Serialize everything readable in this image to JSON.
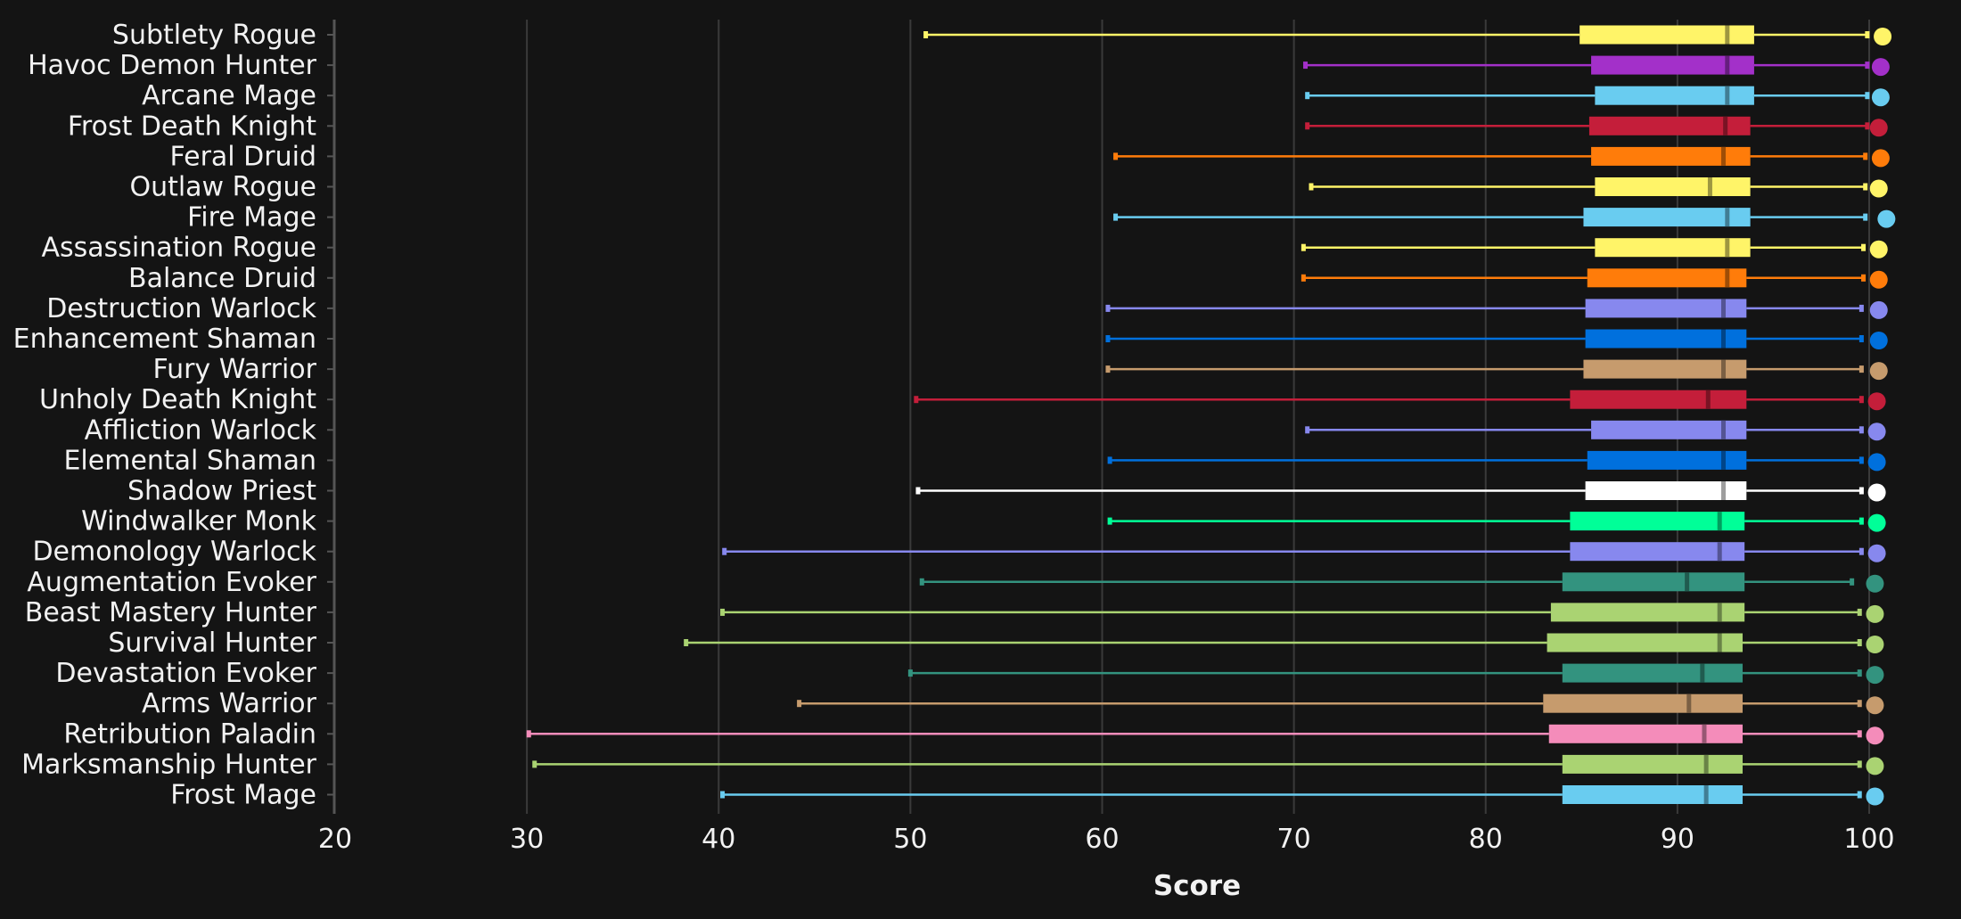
{
  "chart_data": {
    "type": "boxplot",
    "xlabel": "Score",
    "xlim": [
      20,
      100
    ],
    "xticks": [
      20,
      30,
      40,
      50,
      60,
      70,
      80,
      90,
      100
    ],
    "grid": true,
    "series": [
      {
        "name": "Subtlety Rogue",
        "color": "#FFF468",
        "whisker_low": 50.8,
        "q1": 84.9,
        "median": 92.6,
        "q3": 94.0,
        "whisker_high": 99.9,
        "max": 100.7
      },
      {
        "name": "Havoc Demon Hunter",
        "color": "#A330C9",
        "whisker_low": 70.6,
        "q1": 85.5,
        "median": 92.6,
        "q3": 94.0,
        "whisker_high": 99.9,
        "max": 100.6
      },
      {
        "name": "Arcane Mage",
        "color": "#69CCF0",
        "whisker_low": 70.7,
        "q1": 85.7,
        "median": 92.6,
        "q3": 94.0,
        "whisker_high": 99.9,
        "max": 100.6
      },
      {
        "name": "Frost Death Knight",
        "color": "#C41E3A",
        "whisker_low": 70.7,
        "q1": 85.4,
        "median": 92.5,
        "q3": 93.8,
        "whisker_high": 99.9,
        "max": 100.5
      },
      {
        "name": "Feral Druid",
        "color": "#FF7C0A",
        "whisker_low": 60.7,
        "q1": 85.5,
        "median": 92.4,
        "q3": 93.8,
        "whisker_high": 99.8,
        "max": 100.6
      },
      {
        "name": "Outlaw Rogue",
        "color": "#FFF468",
        "whisker_low": 70.9,
        "q1": 85.7,
        "median": 91.7,
        "q3": 93.8,
        "whisker_high": 99.8,
        "max": 100.5
      },
      {
        "name": "Fire Mage",
        "color": "#69CCF0",
        "whisker_low": 60.7,
        "q1": 85.1,
        "median": 92.6,
        "q3": 93.8,
        "whisker_high": 99.8,
        "max": 100.9
      },
      {
        "name": "Assassination Rogue",
        "color": "#FFF468",
        "whisker_low": 70.5,
        "q1": 85.7,
        "median": 92.6,
        "q3": 93.8,
        "whisker_high": 99.7,
        "max": 100.5
      },
      {
        "name": "Balance Druid",
        "color": "#FF7C0A",
        "whisker_low": 70.5,
        "q1": 85.3,
        "median": 92.6,
        "q3": 93.6,
        "whisker_high": 99.7,
        "max": 100.5
      },
      {
        "name": "Destruction Warlock",
        "color": "#8788EE",
        "whisker_low": 60.3,
        "q1": 85.2,
        "median": 92.4,
        "q3": 93.6,
        "whisker_high": 99.6,
        "max": 100.5
      },
      {
        "name": "Enhancement Shaman",
        "color": "#0070DD",
        "whisker_low": 60.3,
        "q1": 85.2,
        "median": 92.4,
        "q3": 93.6,
        "whisker_high": 99.6,
        "max": 100.5
      },
      {
        "name": "Fury Warrior",
        "color": "#C69B6D",
        "whisker_low": 60.3,
        "q1": 85.1,
        "median": 92.4,
        "q3": 93.6,
        "whisker_high": 99.6,
        "max": 100.5
      },
      {
        "name": "Unholy Death Knight",
        "color": "#C41E3A",
        "whisker_low": 50.3,
        "q1": 84.4,
        "median": 91.6,
        "q3": 93.6,
        "whisker_high": 99.6,
        "max": 100.4
      },
      {
        "name": "Affliction Warlock",
        "color": "#8788EE",
        "whisker_low": 70.7,
        "q1": 85.5,
        "median": 92.4,
        "q3": 93.6,
        "whisker_high": 99.6,
        "max": 100.4
      },
      {
        "name": "Elemental Shaman",
        "color": "#0070DD",
        "whisker_low": 60.4,
        "q1": 85.3,
        "median": 92.4,
        "q3": 93.6,
        "whisker_high": 99.6,
        "max": 100.4
      },
      {
        "name": "Shadow Priest",
        "color": "#FFFFFF",
        "whisker_low": 50.4,
        "q1": 85.2,
        "median": 92.4,
        "q3": 93.6,
        "whisker_high": 99.6,
        "max": 100.4
      },
      {
        "name": "Windwalker Monk",
        "color": "#00FF98",
        "whisker_low": 60.4,
        "q1": 84.4,
        "median": 92.2,
        "q3": 93.5,
        "whisker_high": 99.6,
        "max": 100.4
      },
      {
        "name": "Demonology Warlock",
        "color": "#8788EE",
        "whisker_low": 40.3,
        "q1": 84.4,
        "median": 92.2,
        "q3": 93.5,
        "whisker_high": 99.6,
        "max": 100.4
      },
      {
        "name": "Augmentation Evoker",
        "color": "#33937F",
        "whisker_low": 50.6,
        "q1": 84.0,
        "median": 90.5,
        "q3": 93.5,
        "whisker_high": 99.1,
        "max": 100.3
      },
      {
        "name": "Beast Mastery Hunter",
        "color": "#AAD372",
        "whisker_low": 40.2,
        "q1": 83.4,
        "median": 92.2,
        "q3": 93.5,
        "whisker_high": 99.5,
        "max": 100.3
      },
      {
        "name": "Survival Hunter",
        "color": "#AAD372",
        "whisker_low": 38.3,
        "q1": 83.2,
        "median": 92.2,
        "q3": 93.4,
        "whisker_high": 99.5,
        "max": 100.3
      },
      {
        "name": "Devastation Evoker",
        "color": "#33937F",
        "whisker_low": 50.0,
        "q1": 84.0,
        "median": 91.3,
        "q3": 93.4,
        "whisker_high": 99.5,
        "max": 100.3
      },
      {
        "name": "Arms Warrior",
        "color": "#C69B6D",
        "whisker_low": 44.2,
        "q1": 83.0,
        "median": 90.6,
        "q3": 93.4,
        "whisker_high": 99.5,
        "max": 100.3
      },
      {
        "name": "Retribution Paladin",
        "color": "#F48CBA",
        "whisker_low": 30.1,
        "q1": 83.3,
        "median": 91.4,
        "q3": 93.4,
        "whisker_high": 99.5,
        "max": 100.3
      },
      {
        "name": "Marksmanship Hunter",
        "color": "#AAD372",
        "whisker_low": 30.4,
        "q1": 84.0,
        "median": 91.5,
        "q3": 93.4,
        "whisker_high": 99.5,
        "max": 100.3
      },
      {
        "name": "Frost Mage",
        "color": "#69CCF0",
        "whisker_low": 40.2,
        "q1": 84.0,
        "median": 91.5,
        "q3": 93.4,
        "whisker_high": 99.5,
        "max": 100.3
      }
    ]
  }
}
